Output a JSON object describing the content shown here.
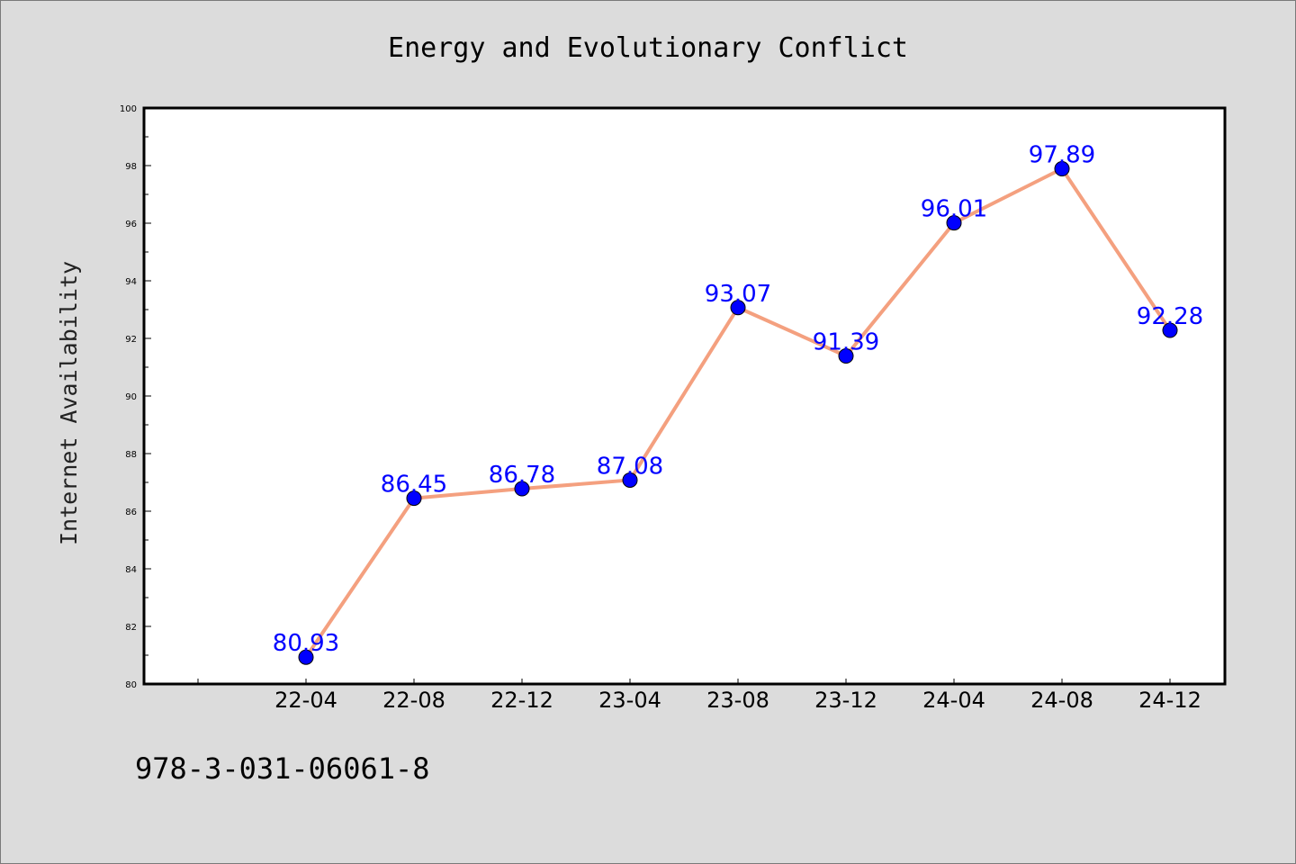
{
  "chart_data": {
    "type": "line",
    "title": "Energy and Evolutionary Conflict",
    "xlabel": "",
    "ylabel": "Internet Availability",
    "categories": [
      "22-04",
      "22-08",
      "22-12",
      "23-04",
      "23-08",
      "23-12",
      "24-04",
      "24-08",
      "24-12"
    ],
    "series": [
      {
        "values": [
          80.93,
          86.45,
          86.78,
          87.08,
          93.07,
          91.39,
          96.01,
          97.89,
          92.28
        ],
        "labels": [
          "80.93",
          "86.45",
          "86.78",
          "87.08",
          "93.07",
          "91.39",
          "96.01",
          "97.89",
          "92.28"
        ],
        "line_color": "#f4a07f",
        "marker_color": "#0000ff"
      }
    ],
    "ylim": [
      80,
      100
    ],
    "yticks": [
      "80",
      "82",
      "84",
      "86",
      "88",
      "90",
      "92",
      "94",
      "96",
      "98",
      "100"
    ],
    "grid": false,
    "legend": "none"
  },
  "footnote": "978-3-031-06061-8",
  "colors": {
    "background": "#dcdcdc",
    "plot_background": "#ffffff",
    "data_label": "#0000ff"
  }
}
